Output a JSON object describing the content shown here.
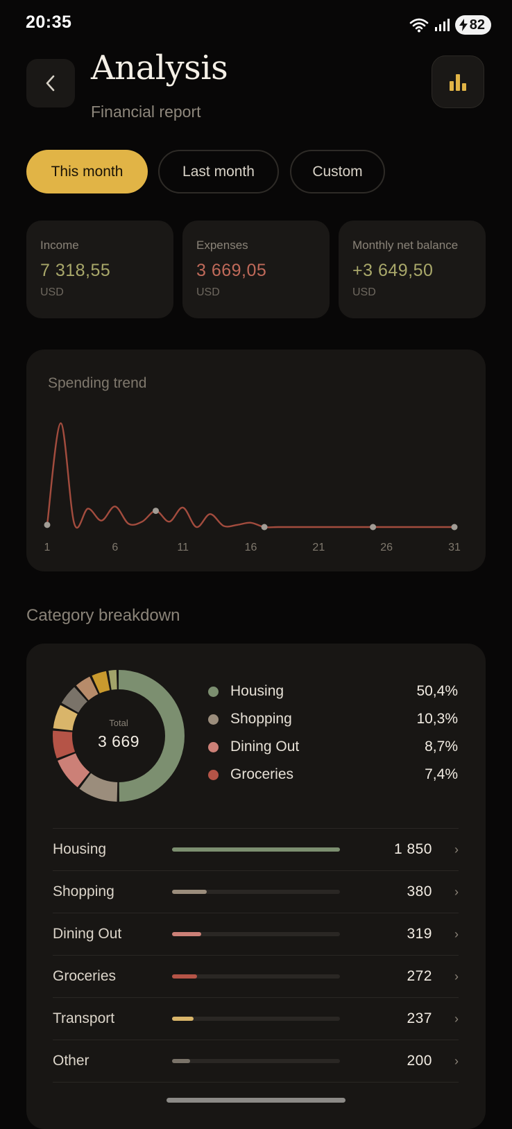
{
  "status_bar": {
    "time": "20:35",
    "battery": "82"
  },
  "header": {
    "title": "Analysis",
    "subtitle": "Financial report"
  },
  "tabs": [
    {
      "label": "This month",
      "active": true
    },
    {
      "label": "Last month",
      "active": false
    },
    {
      "label": "Custom",
      "active": false
    }
  ],
  "summary": [
    {
      "label": "Income",
      "value": "7 318,55",
      "unit": "USD",
      "color": "#a9a86a"
    },
    {
      "label": "Expenses",
      "value": "3 669,05",
      "unit": "USD",
      "color": "#c06a5a"
    },
    {
      "label": "Monthly net balance",
      "value": "+3 649,50",
      "unit": "USD",
      "color": "#a9a86a"
    }
  ],
  "trend": {
    "title": "Spending trend",
    "x_ticks": [
      "1",
      "6",
      "11",
      "16",
      "21",
      "26",
      "31"
    ],
    "line_color": "#a34c3e"
  },
  "chart_data": {
    "type": "line",
    "title": "Spending trend",
    "x": [
      1,
      2,
      3,
      4,
      5,
      6,
      7,
      8,
      9,
      10,
      11,
      12,
      13,
      14,
      15,
      16,
      17,
      18,
      19,
      20,
      21,
      22,
      23,
      24,
      25,
      26,
      27,
      28,
      29,
      30,
      31
    ],
    "series": [
      {
        "values": [
          10,
          480,
          15,
          85,
          30,
          95,
          15,
          25,
          75,
          25,
          90,
          0,
          60,
          5,
          10,
          20,
          0,
          0,
          0,
          0,
          0,
          0,
          0,
          0,
          0,
          0,
          0,
          0,
          0,
          0,
          0
        ]
      }
    ],
    "xlim": [
      1,
      31
    ],
    "ylim": [
      0,
      500
    ],
    "grid": false
  },
  "categories": {
    "title": "Category breakdown",
    "total_label": "Total",
    "total": "3 669",
    "legend": [
      {
        "name": "Housing",
        "pct": "50,4%",
        "color": "#7c8f70"
      },
      {
        "name": "Shopping",
        "pct": "10,3%",
        "color": "#9b8d7c"
      },
      {
        "name": "Dining Out",
        "pct": "8,7%",
        "color": "#cc8077"
      },
      {
        "name": "Groceries",
        "pct": "7,4%",
        "color": "#b55447"
      }
    ],
    "donut_slices": [
      {
        "share": 50.4,
        "color": "#7c8f70"
      },
      {
        "share": 10.3,
        "color": "#9b8d7c"
      },
      {
        "share": 8.7,
        "color": "#cc8077"
      },
      {
        "share": 7.4,
        "color": "#b55447"
      },
      {
        "share": 6.5,
        "color": "#d9b56a"
      },
      {
        "share": 5.5,
        "color": "#7a7369"
      },
      {
        "share": 4.5,
        "color": "#b78b6a"
      },
      {
        "share": 4.2,
        "color": "#c99a2e"
      },
      {
        "share": 2.5,
        "color": "#a2a36a"
      }
    ],
    "rows": [
      {
        "name": "Housing",
        "amount": "1 850",
        "fill": 1.0,
        "color": "#7c8f70"
      },
      {
        "name": "Shopping",
        "amount": "380",
        "fill": 0.205,
        "color": "#9b8d7c"
      },
      {
        "name": "Dining Out",
        "amount": "319",
        "fill": 0.172,
        "color": "#cc8077"
      },
      {
        "name": "Groceries",
        "amount": "272",
        "fill": 0.147,
        "color": "#b55447"
      },
      {
        "name": "Transport",
        "amount": "237",
        "fill": 0.128,
        "color": "#d9b56a"
      },
      {
        "name": "Other",
        "amount": "200",
        "fill": 0.108,
        "color": "#7a7369"
      }
    ]
  }
}
